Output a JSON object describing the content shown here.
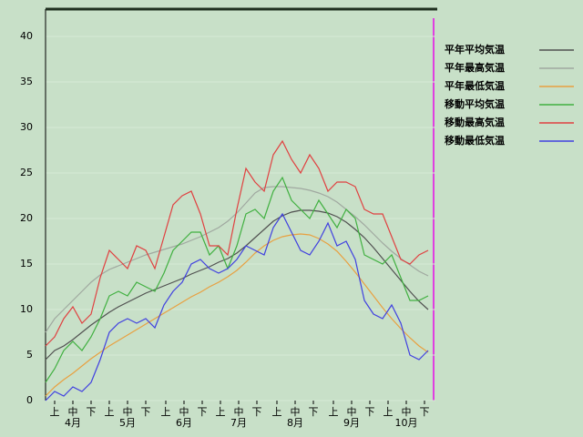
{
  "chart_data": {
    "type": "line",
    "x": [
      0,
      5,
      10,
      15,
      20,
      25,
      30,
      35,
      40,
      45,
      50,
      55,
      60,
      65,
      70,
      75,
      80,
      85,
      90,
      95,
      100,
      105,
      110,
      115,
      120,
      125,
      130,
      135,
      140,
      145,
      150,
      155,
      160,
      165,
      170,
      175,
      180,
      185,
      190,
      195,
      200,
      205,
      210
    ],
    "xlim": [
      0,
      214
    ],
    "xticks": [
      {
        "value": 5,
        "label": "上"
      },
      {
        "value": 15,
        "label": "中"
      },
      {
        "value": 25,
        "label": "下"
      },
      {
        "value": 35,
        "label": "上"
      },
      {
        "value": 45,
        "label": "中"
      },
      {
        "value": 55,
        "label": "下"
      },
      {
        "value": 66,
        "label": "上"
      },
      {
        "value": 76,
        "label": "中"
      },
      {
        "value": 86,
        "label": "下"
      },
      {
        "value": 96,
        "label": "上"
      },
      {
        "value": 106,
        "label": "中"
      },
      {
        "value": 116,
        "label": "下"
      },
      {
        "value": 127,
        "label": "上"
      },
      {
        "value": 137,
        "label": "中"
      },
      {
        "value": 147,
        "label": "下"
      },
      {
        "value": 158,
        "label": "上"
      },
      {
        "value": 168,
        "label": "中"
      },
      {
        "value": 178,
        "label": "下"
      },
      {
        "value": 188,
        "label": "上"
      },
      {
        "value": 198,
        "label": "中"
      },
      {
        "value": 208,
        "label": "下"
      }
    ],
    "month_ticks": [
      {
        "value": 15,
        "label": "4月"
      },
      {
        "value": 45,
        "label": "5月"
      },
      {
        "value": 76,
        "label": "6月"
      },
      {
        "value": 106,
        "label": "7月"
      },
      {
        "value": 137,
        "label": "8月"
      },
      {
        "value": 168,
        "label": "9月"
      },
      {
        "value": 198,
        "label": "10月"
      }
    ],
    "ylim": [
      0,
      43
    ],
    "yticks": [
      0,
      5,
      10,
      15,
      20,
      25,
      30,
      35,
      40
    ],
    "grid": true,
    "legend": "right",
    "series": [
      {
        "name": "平年平均気温",
        "color": "#505050",
        "values": [
          4.5,
          5.5,
          6,
          6.7,
          7.5,
          8.3,
          9,
          9.7,
          10.3,
          10.8,
          11.3,
          11.8,
          12.2,
          12.6,
          13,
          13.4,
          13.9,
          14.3,
          14.7,
          15.2,
          15.6,
          16.2,
          17,
          17.9,
          18.8,
          19.7,
          20.3,
          20.7,
          20.9,
          20.9,
          20.8,
          20.6,
          20.2,
          19.6,
          18.8,
          17.9,
          16.8,
          15.6,
          14.4,
          13.2,
          12,
          10.9,
          10
        ]
      },
      {
        "name": "平年最高気温",
        "color": "#a0a8a0",
        "values": [
          7.5,
          9,
          10,
          11,
          12,
          13,
          13.8,
          14.4,
          14.8,
          15.2,
          15.6,
          16,
          16.3,
          16.6,
          16.9,
          17.2,
          17.6,
          18,
          18.5,
          19,
          19.7,
          20.6,
          21.7,
          22.8,
          23.4,
          23.5,
          23.5,
          23.4,
          23.3,
          23.1,
          22.8,
          22.4,
          21.8,
          21,
          20.2,
          19.3,
          18.3,
          17.3,
          16.4,
          15.6,
          14.9,
          14.2,
          13.7
        ]
      },
      {
        "name": "平年最低気温",
        "color": "#e8a040",
        "values": [
          0.5,
          1.5,
          2.3,
          3,
          3.8,
          4.6,
          5.3,
          6,
          6.6,
          7.2,
          7.8,
          8.4,
          9,
          9.6,
          10.2,
          10.8,
          11.4,
          11.9,
          12.5,
          13,
          13.6,
          14.3,
          15.2,
          16.2,
          17,
          17.6,
          18,
          18.2,
          18.3,
          18.2,
          17.8,
          17.2,
          16.4,
          15.3,
          14.1,
          12.8,
          11.5,
          10.2,
          9,
          7.9,
          6.9,
          6,
          5.3
        ]
      },
      {
        "name": "移動平均気温",
        "color": "#40b040",
        "values": [
          2,
          3.5,
          5.5,
          6.5,
          5.5,
          7,
          9,
          11.5,
          12,
          11.5,
          13,
          12.5,
          12,
          14,
          16.5,
          17.5,
          18.5,
          18.5,
          16,
          17,
          14.5,
          17,
          20.5,
          21,
          20,
          23,
          24.5,
          22,
          21,
          20,
          22,
          20.5,
          19,
          21,
          20,
          16,
          15.5,
          15,
          16,
          13.5,
          11,
          11,
          11.5
        ]
      },
      {
        "name": "移動最高気温",
        "color": "#e04040",
        "values": [
          6,
          7,
          9,
          10.3,
          8.5,
          9.5,
          13.5,
          16.5,
          15.5,
          14.5,
          17,
          16.5,
          14.5,
          18,
          21.5,
          22.5,
          23,
          20.5,
          17,
          17,
          16,
          21,
          25.5,
          24,
          23,
          27,
          28.5,
          26.5,
          25,
          27,
          25.5,
          23,
          24,
          24,
          23.5,
          21,
          20.5,
          20.5,
          18,
          15.5,
          15,
          16,
          16.5
        ]
      },
      {
        "name": "移動最低気温",
        "color": "#4040e0",
        "values": [
          0,
          1,
          0.5,
          1.5,
          1,
          2,
          4.5,
          7.5,
          8.5,
          9,
          8.5,
          9,
          8,
          10.5,
          12,
          13,
          15,
          15.5,
          14.5,
          14,
          14.5,
          15.5,
          17,
          16.5,
          16,
          19,
          20.5,
          18.5,
          16.5,
          16,
          17.5,
          19.5,
          17,
          17.5,
          15.5,
          11,
          9.5,
          9,
          10.5,
          8.5,
          5,
          4.5,
          5.5
        ]
      }
    ]
  }
}
